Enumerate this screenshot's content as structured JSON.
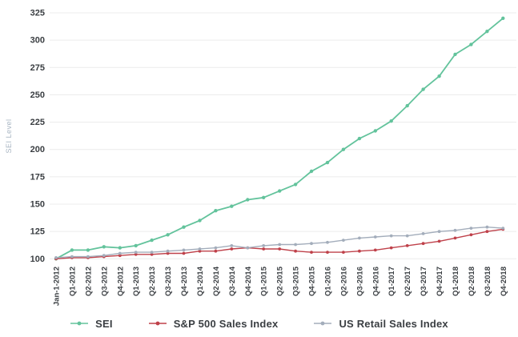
{
  "chart_data": {
    "type": "line",
    "title": "",
    "xlabel": "",
    "ylabel": "SEI Level",
    "ylim": [
      100,
      325
    ],
    "yticks": [
      100,
      125,
      150,
      175,
      200,
      225,
      250,
      275,
      300,
      325
    ],
    "grid": "horizontal",
    "legend_position": "bottom",
    "categories": [
      "Jan-1-2012",
      "Q1-2012",
      "Q2-2012",
      "Q3-2012",
      "Q4-2012",
      "Q1-2013",
      "Q2-2013",
      "Q3-2013",
      "Q4-2013",
      "Q1-2014",
      "Q2-2014",
      "Q3-2014",
      "Q4-2014",
      "Q1-2015",
      "Q2-2015",
      "Q3-2015",
      "Q4-2015",
      "Q1-2016",
      "Q2-2016",
      "Q3-2016",
      "Q4-2016",
      "Q1-2017",
      "Q2-2017",
      "Q3-2017",
      "Q4-2017",
      "Q1-2018",
      "Q2-2018",
      "Q3-2018",
      "Q4-2018"
    ],
    "series": [
      {
        "name": "SEI",
        "color": "#63c39c",
        "values": [
          100,
          108,
          108,
          111,
          110,
          112,
          117,
          122,
          129,
          135,
          144,
          148,
          154,
          156,
          162,
          168,
          180,
          188,
          200,
          210,
          217,
          226,
          240,
          255,
          267,
          287,
          296,
          308,
          320
        ]
      },
      {
        "name": "S&P 500 Sales Index",
        "color": "#bf414a",
        "values": [
          100,
          101,
          101,
          102,
          103,
          104,
          104,
          105,
          105,
          107,
          107,
          109,
          110,
          109,
          109,
          107,
          106,
          106,
          106,
          107,
          108,
          110,
          112,
          114,
          116,
          119,
          122,
          125,
          127
        ]
      },
      {
        "name": "US Retail Sales Index",
        "color": "#a3adbb",
        "values": [
          101,
          102,
          102,
          103,
          105,
          106,
          106,
          107,
          108,
          109,
          110,
          112,
          110,
          112,
          113,
          113,
          114,
          115,
          117,
          119,
          120,
          121,
          121,
          123,
          125,
          126,
          128,
          129,
          128
        ]
      }
    ],
    "style": {
      "gridline_color": "#ececec",
      "tick_label_color": "#3a3e42",
      "axis_label_color": "#a9b6c3",
      "background": "#ffffff"
    }
  }
}
